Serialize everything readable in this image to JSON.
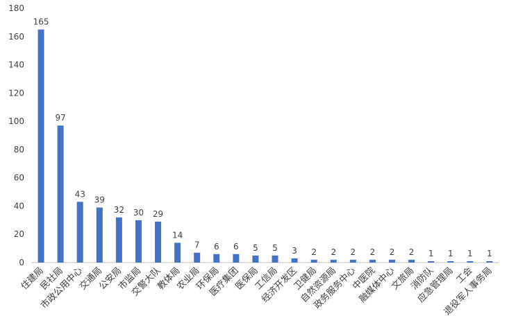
{
  "chart_data": {
    "type": "bar",
    "categories": [
      "住建局",
      "民社局",
      "市政公用中心",
      "交通局",
      "公安局",
      "市监局",
      "交警大队",
      "教体局",
      "农业局",
      "环保局",
      "医疗集团",
      "医保局",
      "工信局",
      "经济开发区",
      "卫健局",
      "自然资源局",
      "政务服务中心",
      "中医院",
      "融媒体中心",
      "文旅局",
      "消防队",
      "应急管理局",
      "工会",
      "退役军人事务局"
    ],
    "values": [
      165,
      97,
      43,
      39,
      32,
      30,
      29,
      14,
      7,
      6,
      6,
      5,
      5,
      3,
      2,
      2,
      2,
      2,
      2,
      2,
      1,
      1,
      1,
      1
    ],
    "color": "#4472c4",
    "ylim": [
      0,
      180
    ],
    "yticks": [
      0,
      20,
      40,
      60,
      80,
      100,
      120,
      140,
      160,
      180
    ],
    "grid": false
  }
}
